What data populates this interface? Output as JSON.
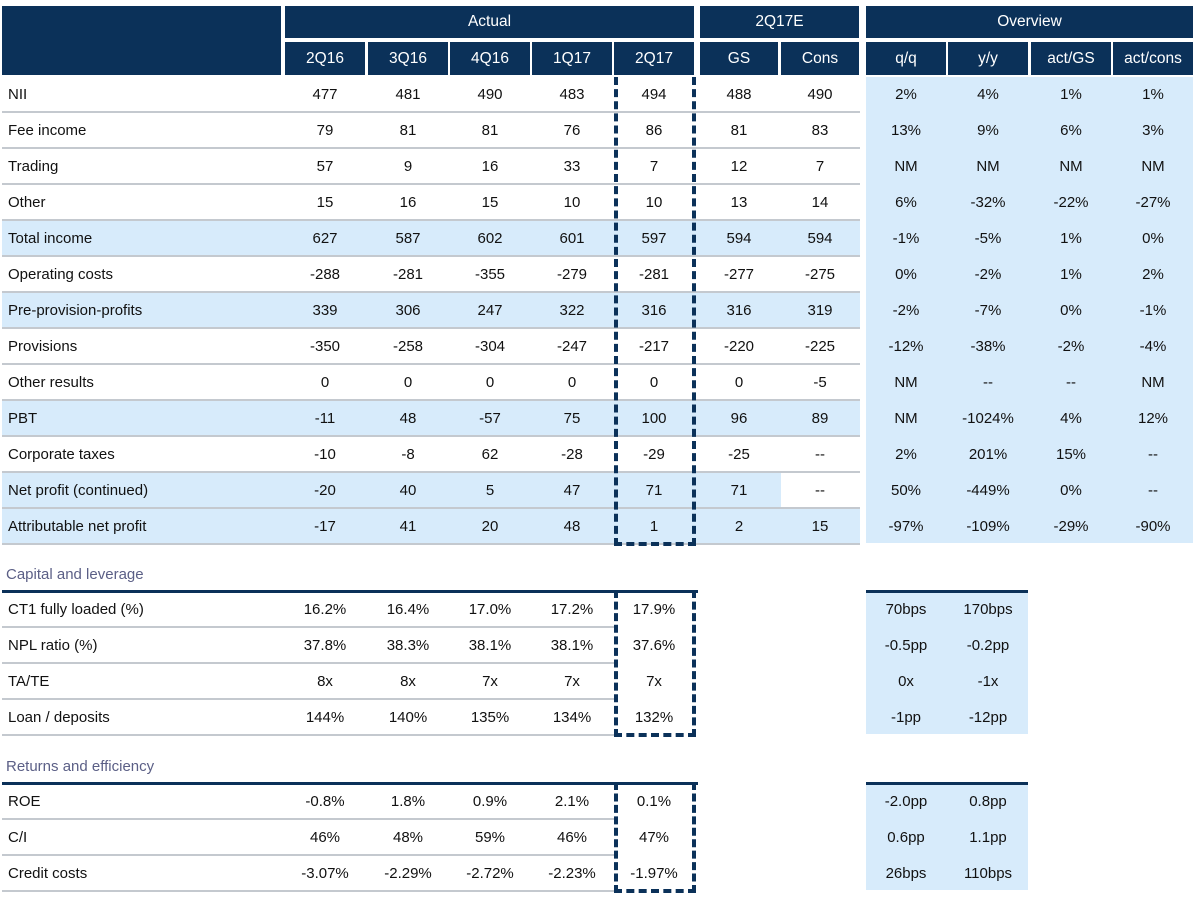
{
  "header": {
    "groups": [
      {
        "key": "actual",
        "label": "Actual"
      },
      {
        "key": "estimate",
        "label": "2Q17E"
      },
      {
        "key": "overview",
        "label": "Overview"
      }
    ],
    "columns": [
      "2Q16",
      "3Q16",
      "4Q16",
      "1Q17",
      "2Q17",
      "GS",
      "Cons",
      "q/q",
      "y/y",
      "act/GS",
      "act/cons"
    ]
  },
  "main_rows": [
    {
      "label": "NII",
      "highlight": false,
      "values": [
        "477",
        "481",
        "490",
        "483",
        "494",
        "488",
        "490"
      ],
      "overview": [
        "2%",
        "4%",
        "1%",
        "1%"
      ]
    },
    {
      "label": "Fee income",
      "highlight": false,
      "values": [
        "79",
        "81",
        "81",
        "76",
        "86",
        "81",
        "83"
      ],
      "overview": [
        "13%",
        "9%",
        "6%",
        "3%"
      ]
    },
    {
      "label": "Trading",
      "highlight": false,
      "values": [
        "57",
        "9",
        "16",
        "33",
        "7",
        "12",
        "7"
      ],
      "overview": [
        "NM",
        "NM",
        "NM",
        "NM"
      ]
    },
    {
      "label": "Other",
      "highlight": false,
      "values": [
        "15",
        "16",
        "15",
        "10",
        "10",
        "13",
        "14"
      ],
      "overview": [
        "6%",
        "-32%",
        "-22%",
        "-27%"
      ]
    },
    {
      "label": "Total income",
      "highlight": true,
      "values": [
        "627",
        "587",
        "602",
        "601",
        "597",
        "594",
        "594"
      ],
      "overview": [
        "-1%",
        "-5%",
        "1%",
        "0%"
      ]
    },
    {
      "label": "Operating costs",
      "highlight": false,
      "values": [
        "-288",
        "-281",
        "-355",
        "-279",
        "-281",
        "-277",
        "-275"
      ],
      "overview": [
        "0%",
        "-2%",
        "1%",
        "2%"
      ]
    },
    {
      "label": "Pre-provision-profits",
      "highlight": true,
      "values": [
        "339",
        "306",
        "247",
        "322",
        "316",
        "316",
        "319"
      ],
      "overview": [
        "-2%",
        "-7%",
        "0%",
        "-1%"
      ]
    },
    {
      "label": "Provisions",
      "highlight": false,
      "values": [
        "-350",
        "-258",
        "-304",
        "-247",
        "-217",
        "-220",
        "-225"
      ],
      "overview": [
        "-12%",
        "-38%",
        "-2%",
        "-4%"
      ]
    },
    {
      "label": "Other results",
      "highlight": false,
      "values": [
        "0",
        "0",
        "0",
        "0",
        "0",
        "0",
        "-5"
      ],
      "overview": [
        "NM",
        "--",
        "--",
        "NM"
      ]
    },
    {
      "label": "PBT",
      "highlight": true,
      "values": [
        "-11",
        "48",
        "-57",
        "75",
        "100",
        "96",
        "89"
      ],
      "overview": [
        "NM",
        "-1024%",
        "4%",
        "12%"
      ]
    },
    {
      "label": "Corporate taxes",
      "highlight": false,
      "values": [
        "-10",
        "-8",
        "62",
        "-28",
        "-29",
        "-25",
        "--"
      ],
      "overview": [
        "2%",
        "201%",
        "15%",
        "--"
      ]
    },
    {
      "label": "Net profit (continued)",
      "highlight": true,
      "cons_white": true,
      "values": [
        "-20",
        "40",
        "5",
        "47",
        "71",
        "71",
        "--"
      ],
      "overview": [
        "50%",
        "-449%",
        "0%",
        "--"
      ]
    },
    {
      "label": "Attributable net profit",
      "highlight": true,
      "values": [
        "-17",
        "41",
        "20",
        "48",
        "1",
        "2",
        "15"
      ],
      "overview": [
        "-97%",
        "-109%",
        "-29%",
        "-90%"
      ]
    }
  ],
  "sections": [
    {
      "title": "Capital and leverage",
      "rows": [
        {
          "label": "CT1 fully loaded (%)",
          "values": [
            "16.2%",
            "16.4%",
            "17.0%",
            "17.2%",
            "17.9%"
          ],
          "overview": [
            "70bps",
            "170bps"
          ]
        },
        {
          "label": "NPL ratio (%)",
          "values": [
            "37.8%",
            "38.3%",
            "38.1%",
            "38.1%",
            "37.6%"
          ],
          "overview": [
            "-0.5pp",
            "-0.2pp"
          ]
        },
        {
          "label": "TA/TE",
          "values": [
            "8x",
            "8x",
            "7x",
            "7x",
            "7x"
          ],
          "overview": [
            "0x",
            "-1x"
          ]
        },
        {
          "label": "Loan / deposits",
          "values": [
            "144%",
            "140%",
            "135%",
            "134%",
            "132%"
          ],
          "overview": [
            "-1pp",
            "-12pp"
          ]
        }
      ]
    },
    {
      "title": "Returns and efficiency",
      "rows": [
        {
          "label": "ROE",
          "values": [
            "-0.8%",
            "1.8%",
            "0.9%",
            "2.1%",
            "0.1%"
          ],
          "overview": [
            "-2.0pp",
            "0.8pp"
          ]
        },
        {
          "label": "C/I",
          "values": [
            "46%",
            "48%",
            "59%",
            "46%",
            "47%"
          ],
          "overview": [
            "0.6pp",
            "1.1pp"
          ]
        },
        {
          "label": "Credit costs",
          "values": [
            "-3.07%",
            "-2.29%",
            "-2.72%",
            "-2.23%",
            "-1.97%"
          ],
          "overview": [
            "26bps",
            "110bps"
          ]
        }
      ]
    }
  ],
  "colors": {
    "header_bg": "#0b3159",
    "header_text": "#ffffff",
    "highlight_bg": "#d7ebfb",
    "section_title": "#5b5f86",
    "separator": "#c4c9cf"
  }
}
